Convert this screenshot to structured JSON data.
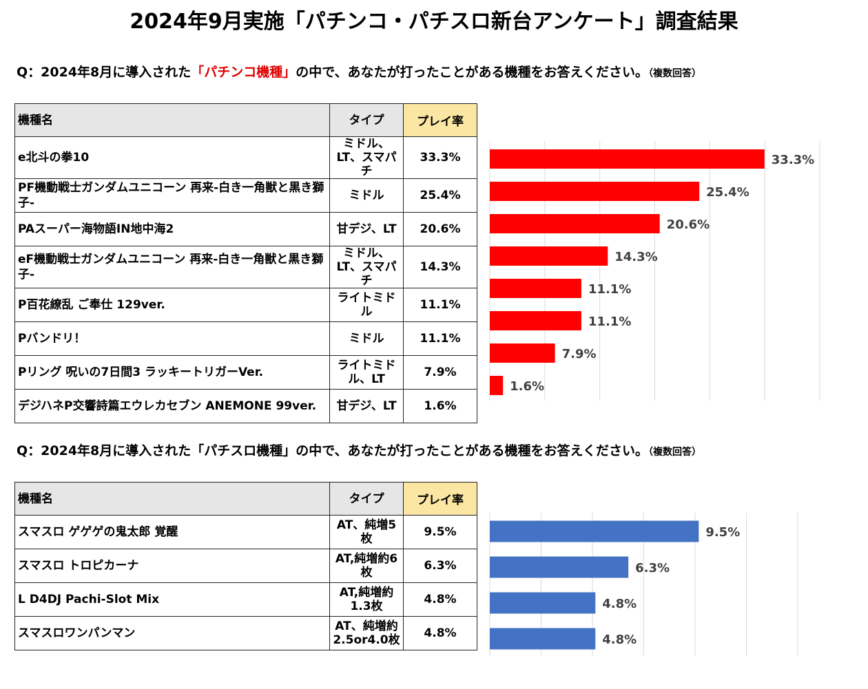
{
  "title": "2024年9月実施「パチンコ・パチスロ新台アンケート」調査結果",
  "pachinko": {
    "question_pre": "Q：2024年8月に導入された",
    "question_highlight": "「パチンコ機種」",
    "question_post": "の中で、あなたが打ったことがある機種をお答えください。",
    "question_note": "（複数回答）",
    "headers": {
      "name": "機種名",
      "type": "タイプ",
      "rate": "プレイ率"
    },
    "rows": [
      {
        "name": "e北斗の拳10",
        "type": "ミドル、LT、スマパチ",
        "rate": "33.3%"
      },
      {
        "name": "PF機動戦士ガンダムユニコーン 再来-白き一角獣と黒き獅子-",
        "type": "ミドル",
        "rate": "25.4%"
      },
      {
        "name": "PAスーパー海物語IN地中海2",
        "type": "甘デジ、LT",
        "rate": "20.6%"
      },
      {
        "name": "eF機動戦士ガンダムユニコーン 再来-白き一角獣と黒き獅子-",
        "type": "ミドル、LT、スマパチ",
        "rate": "14.3%"
      },
      {
        "name": "P百花繚乱 ご奉仕 129ver.",
        "type": "ライトミドル",
        "rate": "11.1%"
      },
      {
        "name": "Pバンドリ！",
        "type": "ミドル",
        "rate": "11.1%"
      },
      {
        "name": "Pリング 呪いの7日間3 ラッキートリガーVer.",
        "type": "ライトミドル、LT",
        "rate": "7.9%"
      },
      {
        "name": "デジハネP交響詩篇エウレカセブン ANEMONE 99ver.",
        "type": "甘デジ、LT",
        "rate": "1.6%"
      }
    ]
  },
  "pachislot": {
    "question_pre": "Q：2024年8月に導入された",
    "question_highlight": "「パチスロ機種」",
    "question_post": "の中で、あなたが打ったことがある機種をお答えください。",
    "question_note": "（複数回答）",
    "headers": {
      "name": "機種名",
      "type": "タイプ",
      "rate": "プレイ率"
    },
    "rows": [
      {
        "name": "スマスロ ゲゲゲの鬼太郎 覚醒",
        "type": "AT、純増5枚",
        "rate": "9.5%"
      },
      {
        "name": "スマスロ トロピカーナ",
        "type": "AT,純増約6枚",
        "rate": "6.3%"
      },
      {
        "name": "L D4DJ Pachi-Slot Mix",
        "type": "AT,純増約1.3枚",
        "rate": "4.8%"
      },
      {
        "name": "スマスロワンパンマン",
        "type": "AT、純増約2.5or4.0枚",
        "rate": "4.8%"
      }
    ]
  },
  "chart_data": [
    {
      "type": "bar",
      "orientation": "horizontal",
      "categories": [
        "e北斗の拳10",
        "PF機動戦士ガンダムユニコーン 再来-白き一角獣と黒き獅子-",
        "PAスーパー海物語IN地中海2",
        "eF機動戦士ガンダムユニコーン 再来-白き一角獣と黒き獅子-",
        "P百花繚乱 ご奉仕 129ver.",
        "Pバンドリ！",
        "Pリング 呪いの7日間3 ラッキートリガーVer.",
        "デジハネP交響詩篇エウレカセブン ANEMONE 99ver."
      ],
      "values": [
        33.3,
        25.4,
        20.6,
        14.3,
        11.1,
        11.1,
        7.9,
        1.6
      ],
      "labels": [
        "33.3%",
        "25.4%",
        "20.6%",
        "14.3%",
        "11.1%",
        "11.1%",
        "7.9%",
        "1.6%"
      ],
      "color": "#ff0000",
      "xlim": [
        0,
        40
      ],
      "grid": true
    },
    {
      "type": "bar",
      "orientation": "horizontal",
      "categories": [
        "スマスロ ゲゲゲの鬼太郎 覚醒",
        "スマスロ トロピカーナ",
        "L D4DJ Pachi-Slot Mix",
        "スマスロワンパンマン"
      ],
      "values": [
        9.5,
        6.3,
        4.8,
        4.8
      ],
      "labels": [
        "9.5%",
        "6.3%",
        "4.8%",
        "4.8%"
      ],
      "color": "#4472c4",
      "xlim": [
        0,
        14
      ],
      "grid": true
    }
  ]
}
